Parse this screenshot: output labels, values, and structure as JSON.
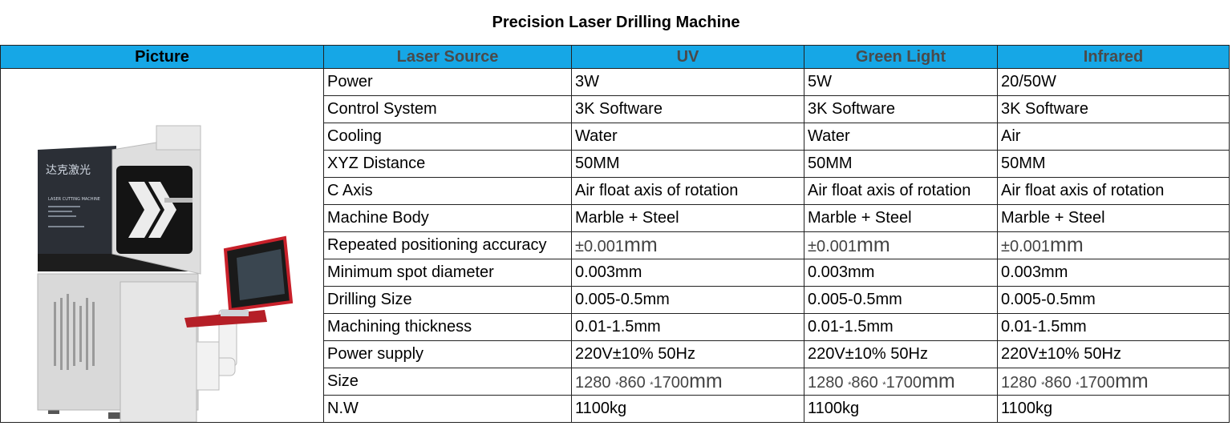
{
  "title": "Precision Laser Drilling Machine",
  "header": {
    "picture": "Picture",
    "columns": [
      "Laser Source",
      "UV",
      "Green Light",
      "Infrared"
    ]
  },
  "machine_logo": "达克激光",
  "machine_label": "LASER CUTTING MACHINE",
  "rows": [
    {
      "label": "Power",
      "values": [
        "3W",
        "5W",
        "20/50W"
      ]
    },
    {
      "label": "Control System",
      "values": [
        "3K Software",
        "3K Software",
        "3K Software"
      ]
    },
    {
      "label": "Cooling",
      "values": [
        "Water",
        "Water",
        "Air"
      ]
    },
    {
      "label": "XYZ Distance",
      "values": [
        "50MM",
        "50MM",
        "50MM"
      ]
    },
    {
      "label": "C Axis",
      "values": [
        "Air float axis of rotation",
        "Air float axis of rotation",
        "Air float axis of rotation"
      ]
    },
    {
      "label": "Machine Body",
      "values": [
        "Marble + Steel",
        "Marble + Steel",
        "Marble + Steel"
      ]
    },
    {
      "label": "Repeated positioning accuracy",
      "values": [
        {
          "a": "±0.001",
          "b": "mm"
        },
        {
          "a": "±0.001",
          "b": "mm"
        },
        {
          "a": "±0.001",
          "b": "mm"
        }
      ]
    },
    {
      "label": "Minimum spot diameter",
      "values": [
        "0.003mm",
        "0.003mm",
        "0.003mm"
      ]
    },
    {
      "label": "Drilling Size",
      "values": [
        "0.005-0.5mm",
        "0.005-0.5mm",
        "0.005-0.5mm"
      ]
    },
    {
      "label": "Machining thickness",
      "values": [
        "0.01-1.5mm",
        "0.01-1.5mm",
        "0.01-1.5mm"
      ]
    },
    {
      "label": "Power supply",
      "values": [
        "220V±10% 50Hz",
        "220V±10% 50Hz",
        "220V±10% 50Hz"
      ]
    },
    {
      "label": "Size",
      "values": [
        {
          "p1": "1280 ",
          "x1": "*",
          "p2": "860 ",
          "x2": "*",
          "p3": "1700",
          "b": "mm"
        },
        {
          "p1": "1280 ",
          "x1": "*",
          "p2": "860 ",
          "x2": "*",
          "p3": "1700",
          "b": "mm"
        },
        {
          "p1": "1280 ",
          "x1": "*",
          "p2": "860 ",
          "x2": "*",
          "p3": "1700",
          "b": "mm"
        }
      ]
    },
    {
      "label": "N.W",
      "values": [
        "1100kg",
        "1100kg",
        "1100kg"
      ]
    }
  ]
}
